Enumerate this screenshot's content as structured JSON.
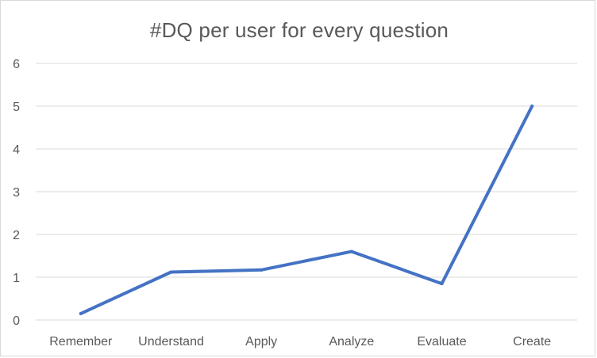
{
  "chart_data": {
    "type": "line",
    "title": "#DQ per user for every question",
    "categories": [
      "Remember",
      "Understand",
      "Apply",
      "Analyze",
      "Evaluate",
      "Create"
    ],
    "series": [
      {
        "values": [
          0.15,
          1.12,
          1.17,
          1.6,
          0.85,
          5.0
        ]
      }
    ],
    "ylim": [
      0,
      6
    ],
    "yticks": [
      0,
      1,
      2,
      3,
      4,
      5,
      6
    ],
    "xlabel": "",
    "ylabel": "",
    "grid": "horizontal",
    "legend": "none",
    "colors": {
      "series": "#4472c4",
      "grid": "#d9d9d9",
      "text": "#595959"
    }
  }
}
